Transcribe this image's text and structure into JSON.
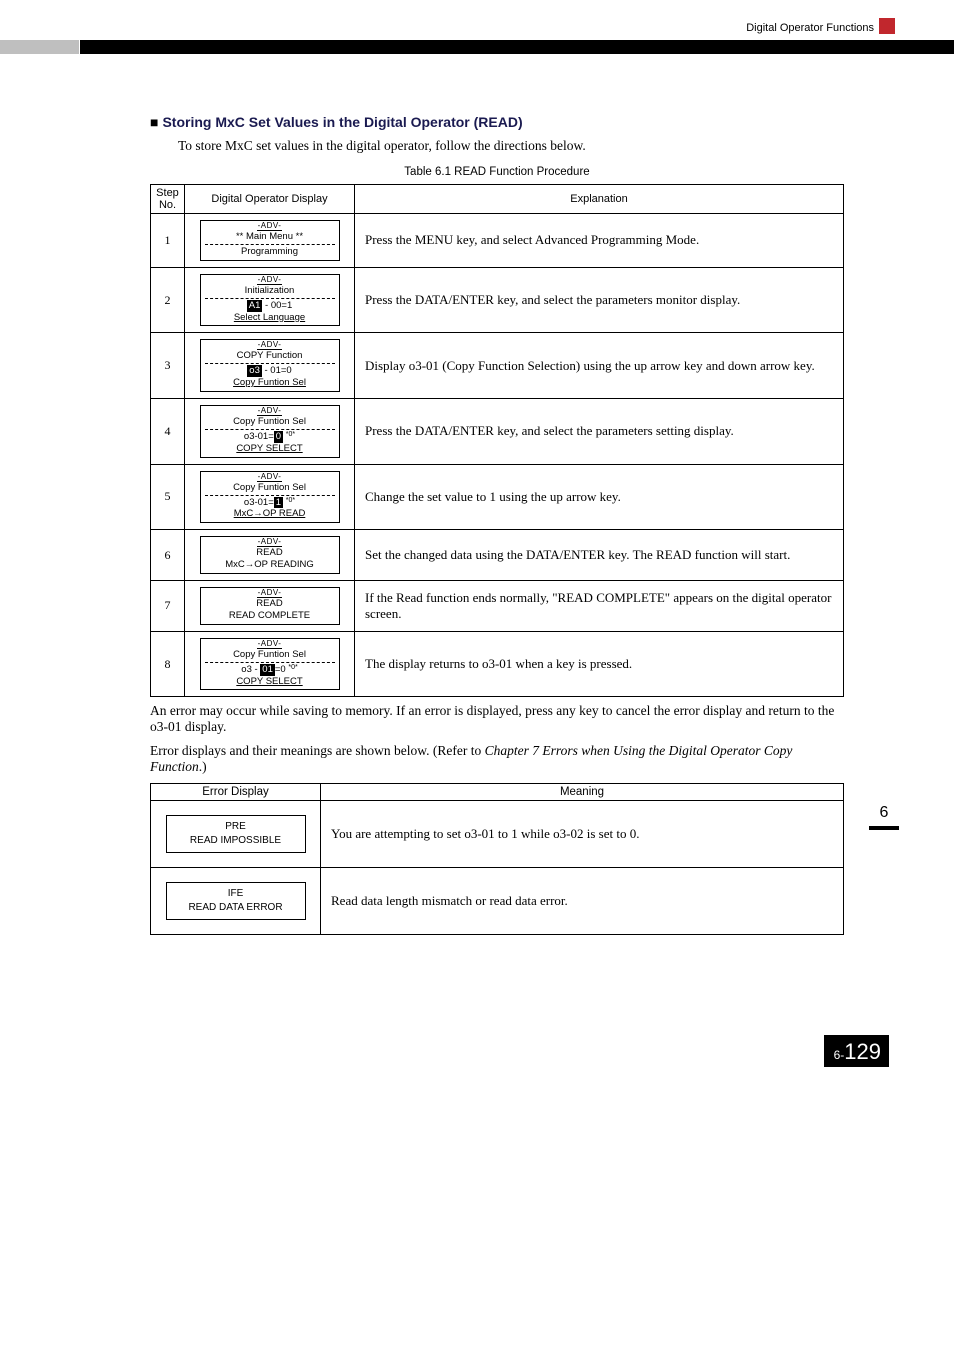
{
  "header": {
    "title": "Digital Operator Functions"
  },
  "sidebar": {
    "chapter_number": "6"
  },
  "section": {
    "heading": "Storing MxC Set Values in the Digital Operator (READ)",
    "intro": "To store MxC set values in the digital operator, follow the directions below.",
    "table_caption": "Table 6.1  READ Function Procedure"
  },
  "proc_table": {
    "headers": {
      "step": "Step\nNo.",
      "display": "Digital Operator Display",
      "explanation": "Explanation"
    },
    "rows": [
      {
        "step": "1",
        "lcd": {
          "adv": "-ADV-",
          "line1": "** Main Menu **",
          "dash": true,
          "line2": "Programming"
        },
        "explanation": "Press the MENU key, and select Advanced Programming Mode."
      },
      {
        "step": "2",
        "lcd": {
          "adv": "-ADV-",
          "line1": "Initialization",
          "dash": true,
          "line2_pre": "",
          "line2_inv": "A1",
          "line2_post": " - 00=1",
          "line3": "Select Language",
          "und3": true
        },
        "explanation": "Press the DATA/ENTER key, and select the parameters monitor display."
      },
      {
        "step": "3",
        "lcd": {
          "adv": "-ADV-",
          "line1": "COPY Function",
          "dash": true,
          "line2_pre": "",
          "line2_inv": "o3",
          "line2_post": " - 01=0",
          "line3": "Copy Funtion Sel",
          "und3": true
        },
        "explanation": "Display o3-01 (Copy Function Selection) using the up arrow key and down arrow key."
      },
      {
        "step": "4",
        "lcd": {
          "adv": "-ADV-",
          "line1": "Copy Funtion Sel",
          "dash": true,
          "line2_pre": "o3-01=",
          "line2_inv": " 0 ",
          "line2_post": "   ",
          "line2_star": "*0*",
          "line3": "COPY SELECT",
          "und3": true
        },
        "explanation": "Press the DATA/ENTER key, and select the parameters setting display."
      },
      {
        "step": "5",
        "lcd": {
          "adv": "-ADV-",
          "line1": "Copy Funtion Sel",
          "dash": true,
          "line2_pre": "o3-01=",
          "line2_inv": " 1 ",
          "line2_post": "   ",
          "line2_star": "*0*",
          "line3": "MxC→OP READ",
          "und3": true
        },
        "explanation": "Change the set value to 1 using the up arrow key."
      },
      {
        "step": "6",
        "lcd": {
          "adv": "-ADV-",
          "line1": "READ",
          "line2": "MxC→OP READING"
        },
        "explanation": "Set the changed data using the DATA/ENTER key. The READ function will start."
      },
      {
        "step": "7",
        "lcd": {
          "adv": "-ADV-",
          "line1": "READ",
          "line2": "READ COMPLETE"
        },
        "explanation": "If the Read function ends normally, \"READ COMPLETE\" appears on the digital operator screen."
      },
      {
        "step": "8",
        "lcd": {
          "adv": "-ADV-",
          "line1": "Copy Funtion Sel",
          "dash": true,
          "line2_pre": "o3 - ",
          "line2_inv": "01",
          "line2_post": "=0  ",
          "line2_star": "*0*",
          "line3": "COPY SELECT",
          "und3": true
        },
        "explanation": "The display returns to o3-01 when a key is pressed."
      }
    ]
  },
  "after": {
    "p1": "An error may occur while saving to memory. If an error is displayed, press any key to cancel the error display and return to the o3-01 display.",
    "p2_a": "Error displays and their meanings are shown below. (Refer to ",
    "p2_i": "Chapter 7 Errors when Using the Digital Operator Copy Function",
    "p2_b": ".)"
  },
  "err_table": {
    "headers": {
      "display": "Error Display",
      "meaning": "Meaning"
    },
    "rows": [
      {
        "l1": "PRE",
        "l2": "READ IMPOSSIBLE",
        "meaning": "You are attempting to set o3-01 to 1 while o3-02 is set to 0."
      },
      {
        "l1": "IFE",
        "l2": "READ DATA ERROR",
        "meaning": "Read data length mismatch or read data error."
      }
    ]
  },
  "footer": {
    "prefix": "6-",
    "num": "129"
  }
}
